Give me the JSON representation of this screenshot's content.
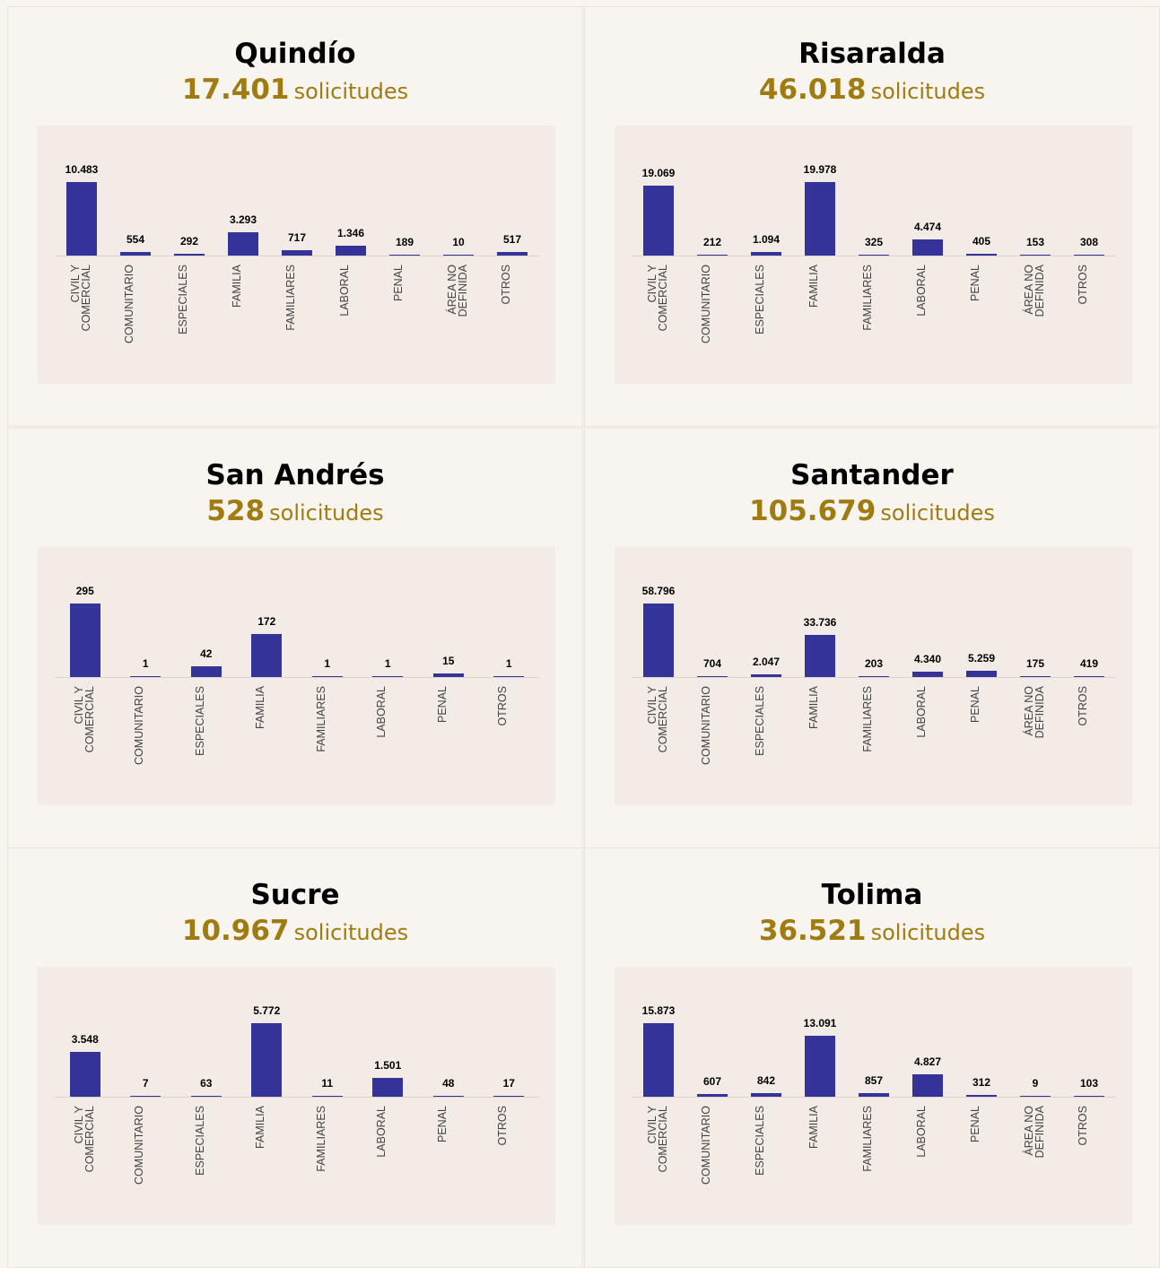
{
  "chart_data": [
    {
      "type": "bar",
      "title": "Quindío",
      "total": "17.401",
      "unit": "solicitudes",
      "color": "#33339a",
      "categories": [
        "CIVIL Y COMERCIAL",
        "COMUNITARIO",
        "ESPECIALES",
        "FAMILIA",
        "FAMILIARES",
        "LABORAL",
        "PENAL",
        "ÁREA NO DEFINIDA",
        "OTROS"
      ],
      "values": [
        10483,
        554,
        292,
        3293,
        717,
        1346,
        189,
        10,
        517
      ],
      "value_labels": [
        "10.483",
        "554",
        "292",
        "3.293",
        "717",
        "1.346",
        "189",
        "10",
        "517"
      ]
    },
    {
      "type": "bar",
      "title": "Risaralda",
      "total": "46.018",
      "unit": "solicitudes",
      "color": "#33339a",
      "categories": [
        "CIVIL Y COMERCIAL",
        "COMUNITARIO",
        "ESPECIALES",
        "FAMILIA",
        "FAMILIARES",
        "LABORAL",
        "PENAL",
        "ÁREA NO DEFINIDA",
        "OTROS"
      ],
      "values": [
        19069,
        212,
        1094,
        19978,
        325,
        4474,
        405,
        153,
        308
      ],
      "value_labels": [
        "19.069",
        "212",
        "1.094",
        "19.978",
        "325",
        "4.474",
        "405",
        "153",
        "308"
      ]
    },
    {
      "type": "bar",
      "title": "San Andrés",
      "total": "528",
      "unit": "solicitudes",
      "color": "#33339a",
      "categories": [
        "CIVIL Y COMERCIAL",
        "COMUNITARIO",
        "ESPECIALES",
        "FAMILIA",
        "FAMILIARES",
        "LABORAL",
        "PENAL",
        "OTROS"
      ],
      "values": [
        295,
        1,
        42,
        172,
        1,
        1,
        15,
        1
      ]
    },
    {
      "type": "bar",
      "title": "Santander",
      "total": "105.679",
      "unit": "solicitudes",
      "color": "#33339a",
      "categories": [
        "CIVIL Y COMERCIAL",
        "COMUNITARIO",
        "ESPECIALES",
        "FAMILIA",
        "FAMILIARES",
        "LABORAL",
        "PENAL",
        "ÁREA NO DEFINIDA",
        "OTROS"
      ],
      "values": [
        58796,
        704,
        2047,
        33736,
        203,
        4340,
        5259,
        175,
        419
      ],
      "value_labels": [
        "58.796",
        "704",
        "2.047",
        "33.736",
        "203",
        "4.340",
        "5.259",
        "175",
        "419"
      ]
    },
    {
      "type": "bar",
      "title": "Sucre",
      "total": "10.967",
      "unit": "solicitudes",
      "color": "#33339a",
      "categories": [
        "CIVIL Y COMERCIAL",
        "COMUNITARIO",
        "ESPECIALES",
        "FAMILIA",
        "FAMILIARES",
        "LABORAL",
        "PENAL",
        "OTROS"
      ],
      "values": [
        3548,
        7,
        63,
        5772,
        11,
        1501,
        48,
        17
      ],
      "value_labels": [
        "3.548",
        "7",
        "63",
        "5.772",
        "11",
        "1.501",
        "48",
        "17"
      ]
    },
    {
      "type": "bar",
      "title": "Tolima",
      "total": "36.521",
      "unit": "solicitudes",
      "color": "#33339a",
      "categories": [
        "CIVIL Y COMERCIAL",
        "COMUNITARIO",
        "ESPECIALES",
        "FAMILIA",
        "FAMILIARES",
        "LABORAL",
        "PENAL",
        "ÁREA NO DEFINIDA",
        "OTROS"
      ],
      "values": [
        15873,
        607,
        842,
        13091,
        857,
        4827,
        312,
        9,
        103
      ],
      "value_labels": [
        "15.873",
        "607",
        "842",
        "13.091",
        "857",
        "4.827",
        "312",
        "9",
        "103"
      ]
    }
  ]
}
